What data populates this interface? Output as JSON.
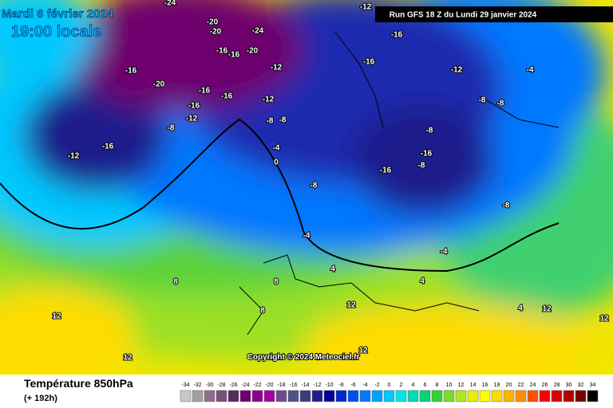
{
  "header": {
    "date": "Mardi 6 février 2024",
    "time": "19:00 locale",
    "run": "Run GFS 18 Z du Lundi 29 janvier 2024"
  },
  "copyright": "Copyright © 2024 Meteociel.fr",
  "footer": {
    "title": "Température 850hPa",
    "lead": "(+ 192h)"
  },
  "map_labels": [
    -24,
    -20,
    -20,
    -24,
    -16,
    -16,
    -20,
    -16,
    -20,
    -16,
    -16,
    -12,
    -8,
    -12,
    -16,
    -12,
    -16,
    -12,
    -8,
    -8,
    -4,
    0,
    -8,
    -12,
    -16,
    -16,
    -12,
    -4,
    -8,
    -8,
    -8,
    -16,
    -16,
    -8,
    -8,
    -4,
    -4,
    4,
    8,
    8,
    12,
    12,
    12,
    12,
    8,
    4,
    4,
    12,
    12
  ],
  "legend": {
    "ticks": [
      -34,
      -32,
      -30,
      -28,
      -26,
      -24,
      -22,
      -20,
      -18,
      -16,
      -14,
      -12,
      -10,
      -8,
      -6,
      -4,
      -2,
      0,
      2,
      4,
      6,
      8,
      10,
      12,
      14,
      16,
      18,
      20,
      22,
      24,
      26,
      28,
      30,
      32,
      34
    ],
    "colors": [
      "#c8c8c8",
      "#a0a0a0",
      "#8c6e8c",
      "#7a4f7a",
      "#5a2a5a",
      "#6e006e",
      "#8c008c",
      "#a000a0",
      "#6e4b8c",
      "#50508c",
      "#3c3c78",
      "#1e1e8c",
      "#0000a0",
      "#0028c8",
      "#0050f0",
      "#0078ff",
      "#00a0ff",
      "#00c8ff",
      "#00e6e6",
      "#00dcb4",
      "#00d278",
      "#32d232",
      "#78dc28",
      "#b4e61e",
      "#e6f000",
      "#ffff00",
      "#ffdc00",
      "#ffb400",
      "#ff8c00",
      "#ff5000",
      "#ff0000",
      "#dc0000",
      "#b40000",
      "#780000",
      "#000000"
    ]
  }
}
